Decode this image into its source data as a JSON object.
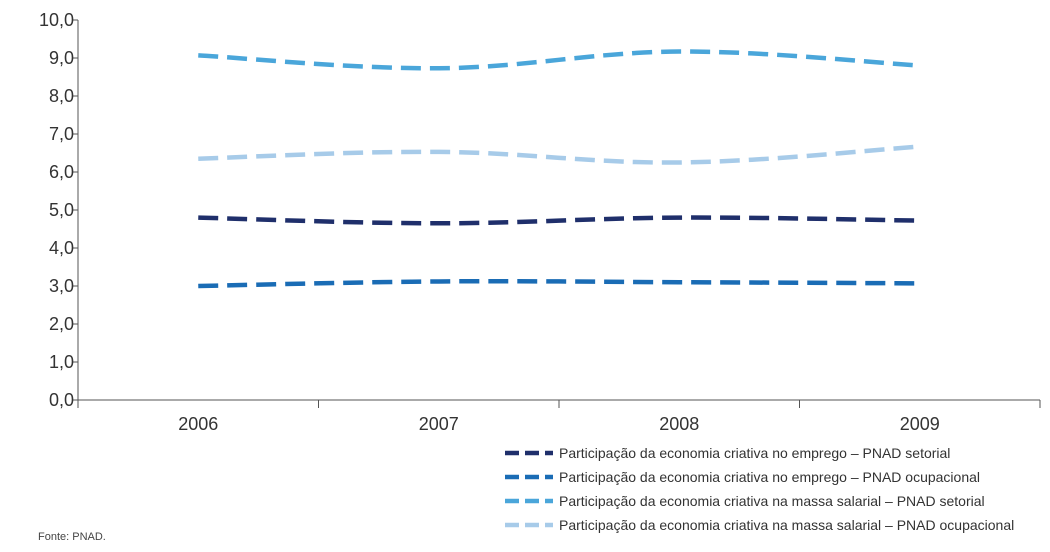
{
  "chart_data": {
    "type": "line",
    "categories": [
      "2006",
      "2007",
      "2008",
      "2009"
    ],
    "ylim": [
      0,
      10
    ],
    "yticks": [
      "0,0",
      "1,0",
      "2,0",
      "3,0",
      "4,0",
      "5,0",
      "6,0",
      "7,0",
      "8,0",
      "9,0",
      "10,0"
    ],
    "grid": false,
    "legend_position": "bottom-right",
    "series": [
      {
        "name": "Participação da economia criativa no emprego – PNAD setorial",
        "values": [
          4.8,
          4.65,
          4.8,
          4.72
        ],
        "color": "#1f2f6b"
      },
      {
        "name": "Participação da economia criativa no emprego – PNAD ocupacional",
        "values": [
          3.0,
          3.12,
          3.1,
          3.07
        ],
        "color": "#1a6cb5"
      },
      {
        "name": "Participação da economia criativa na massa salarial – PNAD setorial",
        "values": [
          9.07,
          8.73,
          9.17,
          8.8
        ],
        "color": "#4aa6da"
      },
      {
        "name": "Participação da economia criativa na massa salarial – PNAD ocupacional",
        "values": [
          6.35,
          6.53,
          6.25,
          6.67
        ],
        "color": "#a7cbe9"
      }
    ]
  },
  "source": "Fonte:  PNAD."
}
